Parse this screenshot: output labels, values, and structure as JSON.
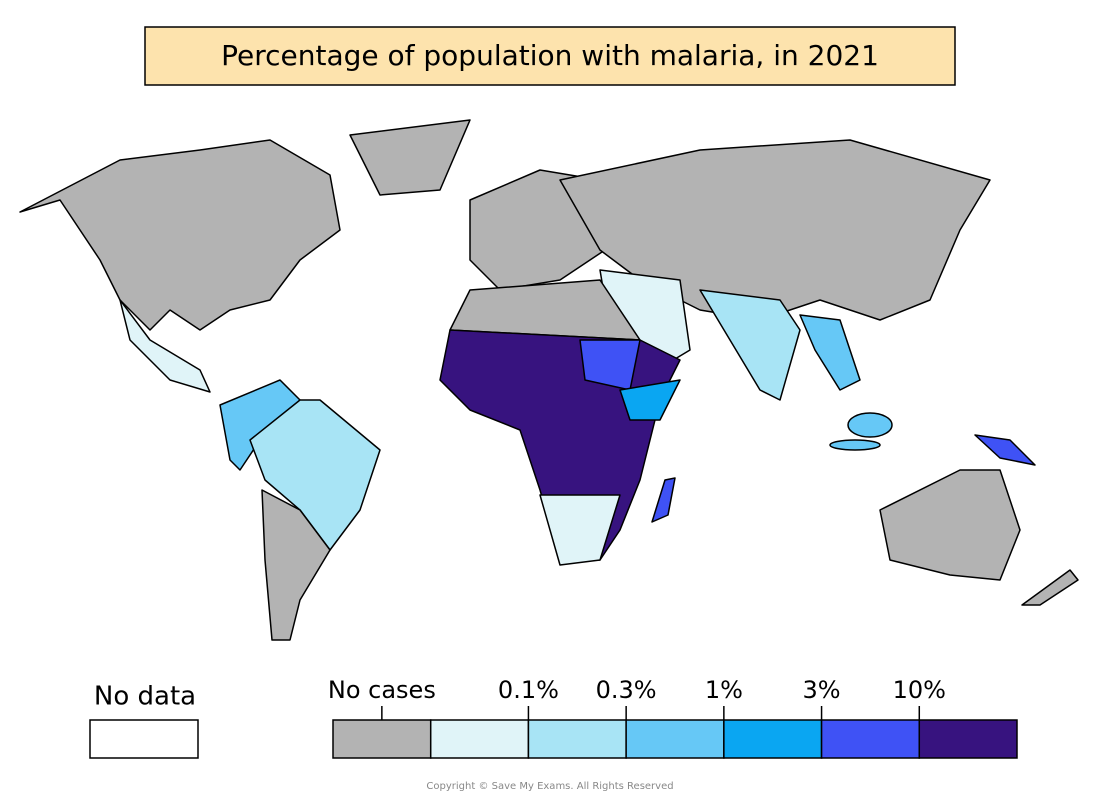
{
  "header": {
    "title": "Percentage of population with malaria, in 2021"
  },
  "legend": {
    "no_data_label": "No data",
    "no_data_color": "#ffffff",
    "labels": [
      "No cases",
      "0.1%",
      "0.3%",
      "1%",
      "3%",
      "10%"
    ],
    "colors": [
      "#b3b3b3",
      "#e0f4f8",
      "#a8e4f5",
      "#66c8f6",
      "#0aa6f2",
      "#3f52f5",
      "#37137f"
    ]
  },
  "footer": {
    "copyright": "Copyright © Save My Exams. All Rights Reserved"
  }
}
